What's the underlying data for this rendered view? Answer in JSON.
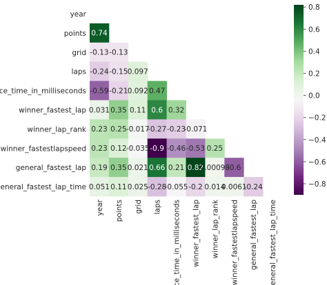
{
  "chart_data": {
    "type": "heatmap",
    "title": "",
    "xlabel": "",
    "ylabel": "",
    "labels": [
      "year",
      "points",
      "grid",
      "laps",
      "race_time_in_milliseconds",
      "winner_fastest_lap",
      "winner_lap_rank",
      "winner_fastestlapspeed",
      "general_fastest_lap",
      "general_fastest_lap_time"
    ],
    "mask": "upper-triangle-including-diagonal",
    "values": [
      [
        null,
        null,
        null,
        null,
        null,
        null,
        null,
        null,
        null,
        null
      ],
      [
        0.74,
        null,
        null,
        null,
        null,
        null,
        null,
        null,
        null,
        null
      ],
      [
        -0.13,
        -0.13,
        null,
        null,
        null,
        null,
        null,
        null,
        null,
        null
      ],
      [
        -0.24,
        -0.15,
        0.097,
        null,
        null,
        null,
        null,
        null,
        null,
        null
      ],
      [
        -0.59,
        -0.21,
        0.092,
        0.47,
        null,
        null,
        null,
        null,
        null,
        null
      ],
      [
        0.031,
        0.35,
        0.11,
        0.6,
        0.32,
        null,
        null,
        null,
        null,
        null
      ],
      [
        0.23,
        0.25,
        -0.017,
        -0.27,
        -0.23,
        -0.071,
        null,
        null,
        null,
        null
      ],
      [
        0.23,
        0.12,
        -0.035,
        -0.9,
        -0.46,
        -0.53,
        0.25,
        null,
        null,
        null
      ],
      [
        0.19,
        0.35,
        0.021,
        0.66,
        0.21,
        0.82,
        0.00098,
        -0.6,
        null,
        null
      ],
      [
        0.051,
        0.11,
        0.025,
        -0.28,
        -0.055,
        -0.2,
        0.014,
        0.0061,
        -0.24,
        null
      ]
    ],
    "annotations": [
      [
        "",
        "",
        "",
        "",
        "",
        "",
        "",
        "",
        "",
        ""
      ],
      [
        "0.74",
        "",
        "",
        "",
        "",
        "",
        "",
        "",
        "",
        ""
      ],
      [
        "-0.13",
        "-0.13",
        "",
        "",
        "",
        "",
        "",
        "",
        "",
        ""
      ],
      [
        "-0.24",
        "-0.15",
        "0.097",
        "",
        "",
        "",
        "",
        "",
        "",
        ""
      ],
      [
        "-0.59",
        "-0.21",
        "0.092",
        "0.47",
        "",
        "",
        "",
        "",
        "",
        ""
      ],
      [
        "0.031",
        "0.35",
        "0.11",
        "0.6",
        "0.32",
        "",
        "",
        "",
        "",
        ""
      ],
      [
        "0.23",
        "0.25",
        "-0.017",
        "-0.27",
        "-0.23",
        "-0.071",
        "",
        "",
        "",
        ""
      ],
      [
        "0.23",
        "0.12",
        "-0.035",
        "-0.9",
        "-0.46",
        "-0.53",
        "0.25",
        "",
        "",
        ""
      ],
      [
        "0.19",
        "0.35",
        "0.021",
        "0.66",
        "0.21",
        "0.82",
        "0.00098",
        "-0.6",
        "",
        ""
      ],
      [
        "0.051",
        "0.11",
        "0.025",
        "-0.28",
        "-0.055",
        "-0.2",
        "0.014",
        "0.0061",
        "-0.24",
        ""
      ]
    ],
    "colormap": "PRGn",
    "vmin": -0.9,
    "vmax": 0.82,
    "colorbar_ticks": [
      0.8,
      0.6,
      0.4,
      0.2,
      0.0,
      -0.2,
      -0.4,
      -0.6,
      -0.8
    ],
    "colorbar_tick_labels": [
      "0.8",
      "0.6",
      "0.4",
      "0.2",
      "0.0",
      "−0.2",
      "−0.4",
      "−0.6",
      "−0.8"
    ],
    "grid": false,
    "legend": "colorbar-right"
  }
}
